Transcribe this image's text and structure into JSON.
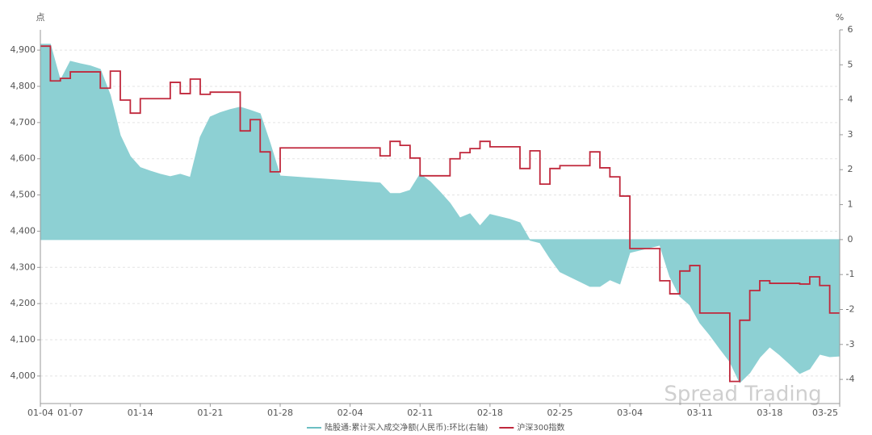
{
  "chart_data": {
    "type": "line-area",
    "y_unit": "点",
    "y2_unit": "%",
    "watermark": "Spread Trading",
    "grid": true,
    "categories": [
      "01-04",
      null,
      null,
      "01-07",
      null,
      null,
      null,
      null,
      null,
      null,
      "01-14",
      null,
      null,
      null,
      null,
      null,
      null,
      "01-21",
      null,
      null,
      null,
      null,
      null,
      null,
      "01-28",
      null,
      null,
      null,
      null,
      null,
      null,
      "02-04",
      null,
      null,
      null,
      null,
      null,
      null,
      "02-11",
      null,
      null,
      null,
      null,
      null,
      null,
      "02-18",
      null,
      null,
      null,
      null,
      null,
      null,
      "02-25",
      null,
      null,
      null,
      null,
      null,
      null,
      "03-04",
      null,
      null,
      null,
      null,
      null,
      null,
      "03-11",
      null,
      null,
      null,
      null,
      null,
      null,
      "03-18",
      null,
      null,
      null,
      null,
      null,
      null,
      "03-25"
    ],
    "ylim": [
      3924,
      4956
    ],
    "yticks": [
      {
        "value": 4000,
        "label": "4,000"
      },
      {
        "value": 4100,
        "label": "4,100"
      },
      {
        "value": 4200,
        "label": "4,200"
      },
      {
        "value": 4300,
        "label": "4,300"
      },
      {
        "value": 4400,
        "label": "4,400"
      },
      {
        "value": 4500,
        "label": "4,500"
      },
      {
        "value": 4600,
        "label": "4,600"
      },
      {
        "value": 4700,
        "label": "4,700"
      },
      {
        "value": 4800,
        "label": "4,800"
      },
      {
        "value": 4900,
        "label": "4,900"
      }
    ],
    "y2lim": [
      -4.69,
      6
    ],
    "y2ticks": [
      -4,
      -3,
      -2,
      -1,
      0,
      1,
      2,
      3,
      4,
      5,
      6
    ],
    "series": [
      {
        "name": "陆股通:累计买入成交净额(人民币):环比(右轴)",
        "kind": "area",
        "axis": "y2",
        "color": "#8dd0d3",
        "values": [
          5.59,
          5.59,
          4.55,
          5.1,
          5.03,
          4.97,
          4.87,
          4.13,
          2.98,
          2.38,
          2.06,
          1.96,
          1.87,
          1.8,
          1.87,
          1.78,
          2.93,
          3.51,
          3.63,
          3.72,
          3.79,
          3.7,
          3.6,
          2.75,
          1.82,
          1.8,
          1.78,
          1.76,
          1.74,
          1.72,
          1.7,
          1.68,
          1.66,
          1.64,
          1.62,
          1.32,
          1.32,
          1.41,
          1.87,
          1.66,
          1.36,
          1.04,
          0.62,
          0.74,
          0.39,
          0.72,
          0.65,
          0.58,
          0.48,
          -0.02,
          -0.09,
          -0.53,
          -0.92,
          -1.06,
          -1.2,
          -1.34,
          -1.34,
          -1.15,
          -1.27,
          -0.37,
          -0.3,
          -0.23,
          -0.16,
          -1.06,
          -1.62,
          -1.87,
          -2.38,
          -2.73,
          -3.12,
          -3.49,
          -4.09,
          -3.81,
          -3.37,
          -3.07,
          -3.3,
          -3.56,
          -3.83,
          -3.7,
          -3.28,
          -3.35,
          -3.33
        ]
      },
      {
        "name": "沪深300指数",
        "kind": "step",
        "axis": "y",
        "color": "#c0283c",
        "values": [
          4911,
          4911,
          4815,
          4822,
          4840,
          4840,
          4840,
          4795,
          4842,
          4762,
          4726,
          4766,
          4766,
          4766,
          4811,
          4780,
          4820,
          4778,
          4784,
          4784,
          4784,
          4677,
          4708,
          4619,
          4564,
          4630,
          4630,
          4630,
          4630,
          4630,
          4630,
          4630,
          4630,
          4630,
          4630,
          4608,
          4648,
          4637,
          4602,
          4553,
          4553,
          4553,
          4600,
          4617,
          4628,
          4648,
          4633,
          4633,
          4633,
          4573,
          4622,
          4530,
          4573,
          4581,
          4581,
          4581,
          4619,
          4575,
          4550,
          4497,
          4352,
          4352,
          4352,
          4263,
          4227,
          4290,
          4305,
          4174,
          4174,
          4174,
          3985,
          4154,
          4236,
          4263,
          4256,
          4256,
          4256,
          4254,
          4274,
          4250,
          4174
        ]
      }
    ]
  }
}
